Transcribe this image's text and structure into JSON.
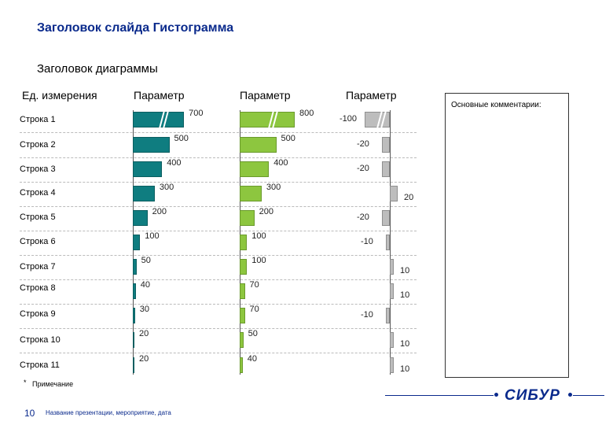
{
  "slide": {
    "title": "Заголовок слайда Гистограмма",
    "footnote_marker": "*",
    "footnote": "Примечание",
    "page_number": "10",
    "footer_text": "Название презентации, мероприятие, дата",
    "logo_text": "СИБУР"
  },
  "comments": {
    "label": "Основные комментарии:"
  },
  "colors": {
    "teal": "#0f7d80",
    "green": "#8dc63f",
    "gray": "#bdbdbd",
    "brand_blue": "#0a2a8c"
  },
  "chart_data": {
    "type": "bar",
    "orientation": "horizontal",
    "title": "Заголовок диаграммы",
    "units_label": "Ед. измерения",
    "categories": [
      "Строка 1",
      "Строка 2",
      "Строка 3",
      "Строка 4",
      "Строка 5",
      "Строка 6",
      "Строка 7",
      "Строка 8",
      "Строка 9",
      "Строка 10",
      "Строка 11"
    ],
    "series": [
      {
        "name": "Параметр",
        "values": [
          700,
          500,
          400,
          300,
          200,
          100,
          50,
          40,
          30,
          20,
          20
        ],
        "broken": [
          true,
          false,
          false,
          false,
          false,
          false,
          false,
          false,
          false,
          false,
          false
        ]
      },
      {
        "name": "Параметр",
        "values": [
          800,
          500,
          400,
          300,
          200,
          100,
          100,
          70,
          70,
          50,
          40
        ],
        "broken": [
          true,
          false,
          false,
          false,
          false,
          false,
          false,
          false,
          false,
          false,
          false
        ]
      },
      {
        "name": "Параметр",
        "values": [
          -100,
          -20,
          -20,
          20,
          -20,
          -10,
          10,
          10,
          -10,
          10,
          10
        ],
        "broken": [
          true,
          false,
          false,
          false,
          false,
          false,
          false,
          false,
          false,
          false,
          false
        ]
      }
    ]
  }
}
